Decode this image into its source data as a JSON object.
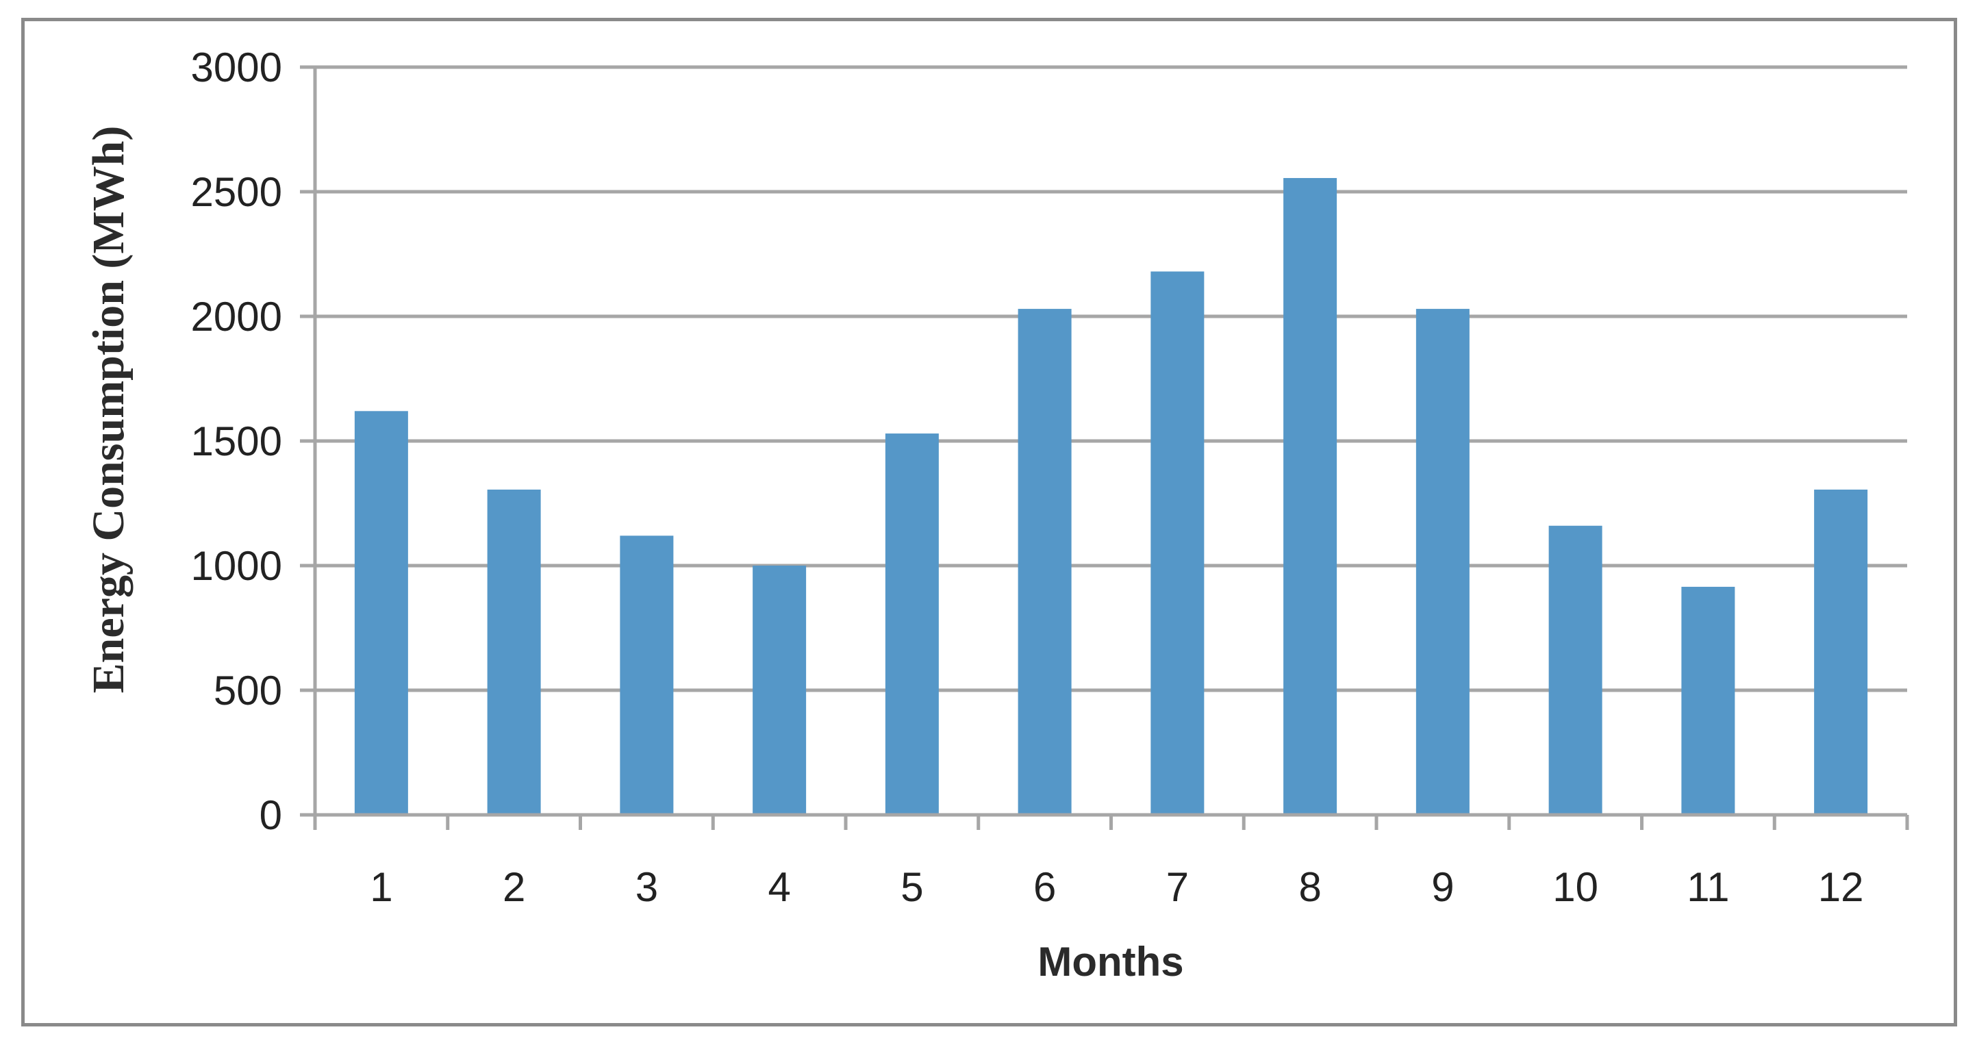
{
  "chart_data": {
    "type": "bar",
    "categories": [
      "1",
      "2",
      "3",
      "4",
      "5",
      "6",
      "7",
      "8",
      "9",
      "10",
      "11",
      "12"
    ],
    "values": [
      1620,
      1305,
      1120,
      1000,
      1530,
      2030,
      2180,
      2555,
      2030,
      1160,
      915,
      1305
    ],
    "title": "",
    "xlabel": "Months",
    "ylabel": "Energy Consumption (MWh)",
    "ylim": [
      0,
      3000
    ],
    "yticks": [
      "0",
      "500",
      "1000",
      "1500",
      "2000",
      "2500",
      "3000"
    ],
    "grid": true,
    "legend": "none",
    "colors": {
      "bar": "#5597c8",
      "grid": "#a6a6a6",
      "axis": "#a6a6a6",
      "frame": "#8a8a8a"
    }
  }
}
